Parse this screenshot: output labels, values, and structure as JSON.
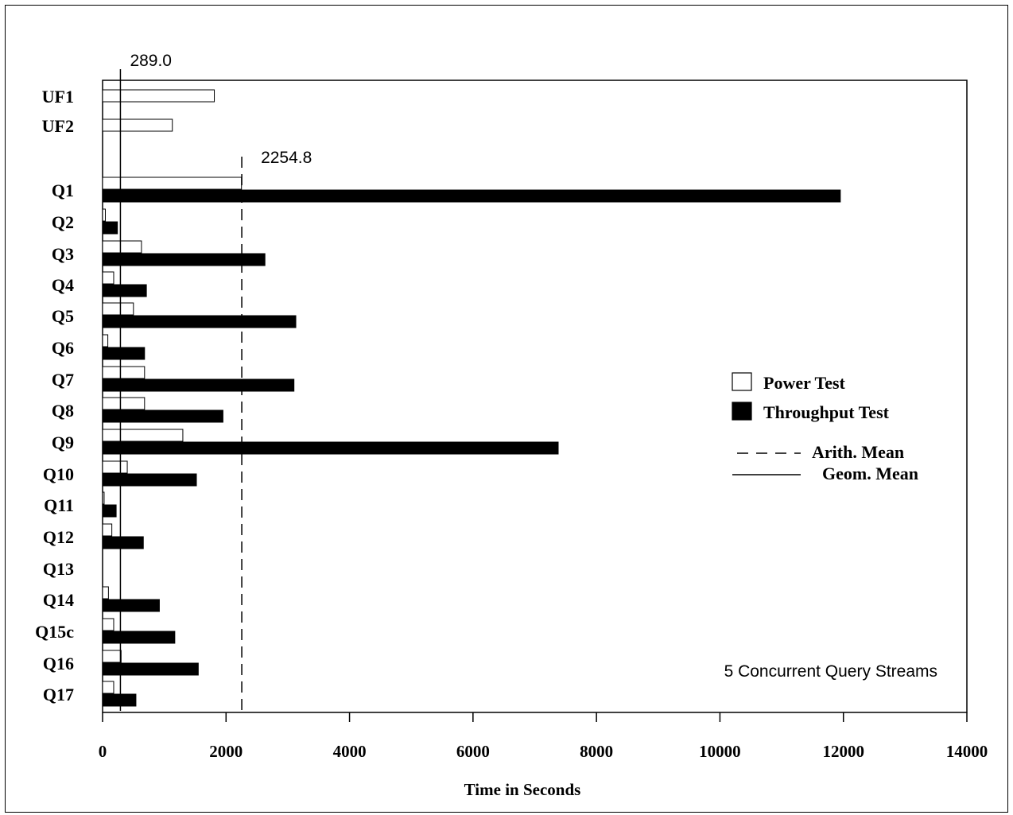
{
  "chart_data": {
    "type": "bar",
    "orientation": "horizontal",
    "xlabel": "Time in Seconds",
    "xlim": [
      0,
      14000
    ],
    "xticks": [
      0,
      2000,
      4000,
      6000,
      8000,
      10000,
      12000,
      14000
    ],
    "categories": [
      "UF1",
      "UF2",
      "Q1",
      "Q2",
      "Q3",
      "Q4",
      "Q5",
      "Q6",
      "Q7",
      "Q8",
      "Q9",
      "Q10",
      "Q11",
      "Q12",
      "Q13",
      "Q14",
      "Q15c",
      "Q16",
      "Q17"
    ],
    "series": [
      {
        "name": "Power Test",
        "fill": "#ffffff",
        "values": [
          1810,
          1130,
          2250,
          45,
          630,
          180,
          500,
          85,
          680,
          680,
          1300,
          400,
          25,
          150,
          0,
          95,
          180,
          300,
          180
        ]
      },
      {
        "name": "Throughput Test",
        "fill": "#000000",
        "values": [
          null,
          null,
          11950,
          240,
          2630,
          710,
          3130,
          680,
          3100,
          1950,
          7380,
          1520,
          220,
          660,
          0,
          920,
          1170,
          1550,
          540
        ]
      }
    ],
    "reference_lines": [
      {
        "name": "Arith. Mean",
        "value": 2254.8,
        "label": "2254.8",
        "style": "dashed"
      },
      {
        "name": "Geom. Mean",
        "value": 289.0,
        "label": "289.0",
        "style": "solid"
      }
    ],
    "legend_position": "right",
    "annotation": "5 Concurrent Query Streams",
    "grid": false
  }
}
